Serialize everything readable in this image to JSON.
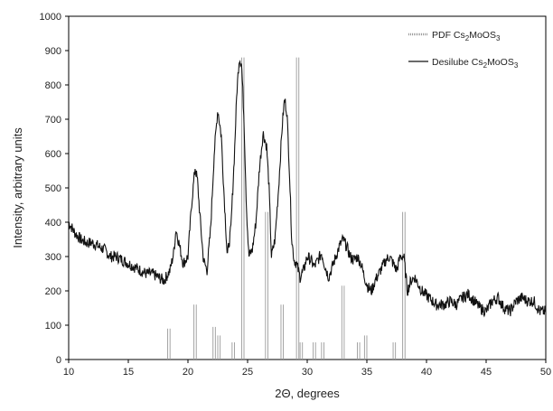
{
  "chart_data": {
    "type": "line",
    "xlabel": "2Θ, degrees",
    "ylabel": "Intensity, arbitrary units",
    "xlim": [
      10,
      50
    ],
    "ylim": [
      0,
      1000
    ],
    "x_ticks": [
      "10",
      "15",
      "20",
      "25",
      "30",
      "35",
      "40",
      "45",
      "50"
    ],
    "y_ticks": [
      "0",
      "100",
      "200",
      "300",
      "400",
      "500",
      "600",
      "700",
      "800",
      "900",
      "1000"
    ],
    "grid": false,
    "legend_position": "top-right",
    "legend": [
      {
        "prefix": "PDF Cs",
        "sub1": "2",
        "mid": "MoOS",
        "sub2": "3",
        "style": "bars",
        "color": "#9a9a9a"
      },
      {
        "prefix": "Desilube Cs",
        "sub1": "2",
        "mid": "MoOS",
        "sub2": "3",
        "style": "line",
        "color": "#111111"
      }
    ],
    "series": [
      {
        "name": "PDF Cs2MoOS3",
        "style": "stick",
        "color": "#9a9a9a",
        "x": [
          18.4,
          20.6,
          22.2,
          22.6,
          23.8,
          24.6,
          26.6,
          27.9,
          29.2,
          29.5,
          30.6,
          31.3,
          33.0,
          34.3,
          34.9,
          37.3,
          38.1
        ],
        "values": [
          90,
          160,
          95,
          70,
          50,
          880,
          430,
          160,
          880,
          50,
          50,
          50,
          215,
          50,
          70,
          50,
          430
        ]
      },
      {
        "name": "Desilube Cs2MoOS3",
        "style": "line",
        "color": "#111111",
        "x": [
          10.0,
          10.5,
          11.0,
          11.5,
          12.0,
          12.5,
          13.0,
          13.5,
          14.0,
          14.5,
          15.0,
          15.5,
          16.0,
          16.5,
          17.0,
          17.5,
          18.0,
          18.5,
          18.8,
          19.0,
          19.3,
          19.6,
          20.0,
          20.3,
          20.6,
          20.8,
          21.0,
          21.3,
          21.6,
          21.9,
          22.2,
          22.5,
          22.8,
          23.0,
          23.3,
          23.6,
          23.9,
          24.1,
          24.3,
          24.5,
          24.7,
          24.9,
          25.1,
          25.4,
          25.7,
          26.0,
          26.3,
          26.6,
          26.8,
          27.0,
          27.3,
          27.6,
          27.9,
          28.1,
          28.3,
          28.5,
          28.7,
          28.9,
          29.1,
          29.4,
          29.7,
          30.0,
          30.3,
          30.6,
          30.9,
          31.2,
          31.5,
          31.8,
          32.1,
          32.4,
          32.7,
          33.0,
          33.3,
          33.6,
          33.9,
          34.2,
          34.5,
          34.8,
          35.1,
          35.4,
          35.7,
          36.0,
          36.3,
          36.6,
          36.9,
          37.2,
          37.5,
          37.8,
          38.1,
          38.4,
          38.7,
          39.0,
          39.3,
          39.6,
          39.9,
          40.2,
          40.5,
          40.8,
          41.1,
          41.5,
          42.0,
          42.5,
          43.0,
          43.5,
          44.0,
          44.5,
          45.0,
          45.5,
          46.0,
          46.5,
          47.0,
          47.5,
          48.0,
          48.5,
          49.0,
          49.5,
          50.0
        ],
        "values": [
          400,
          370,
          350,
          340,
          340,
          330,
          320,
          300,
          300,
          290,
          280,
          270,
          260,
          250,
          250,
          240,
          230,
          260,
          310,
          380,
          330,
          280,
          300,
          450,
          560,
          520,
          420,
          290,
          260,
          380,
          600,
          730,
          650,
          500,
          300,
          380,
          600,
          780,
          880,
          860,
          700,
          450,
          300,
          320,
          400,
          560,
          660,
          620,
          500,
          300,
          350,
          500,
          680,
          760,
          720,
          560,
          350,
          290,
          280,
          240,
          260,
          300,
          290,
          270,
          290,
          310,
          270,
          240,
          270,
          300,
          330,
          350,
          330,
          300,
          290,
          300,
          280,
          240,
          210,
          200,
          230,
          250,
          270,
          290,
          300,
          280,
          260,
          300,
          300,
          200,
          230,
          240,
          220,
          200,
          190,
          180,
          170,
          160,
          160,
          160,
          170,
          160,
          180,
          190,
          170,
          150,
          140,
          170,
          180,
          150,
          140,
          170,
          180,
          170,
          170,
          140,
          140
        ]
      }
    ]
  }
}
